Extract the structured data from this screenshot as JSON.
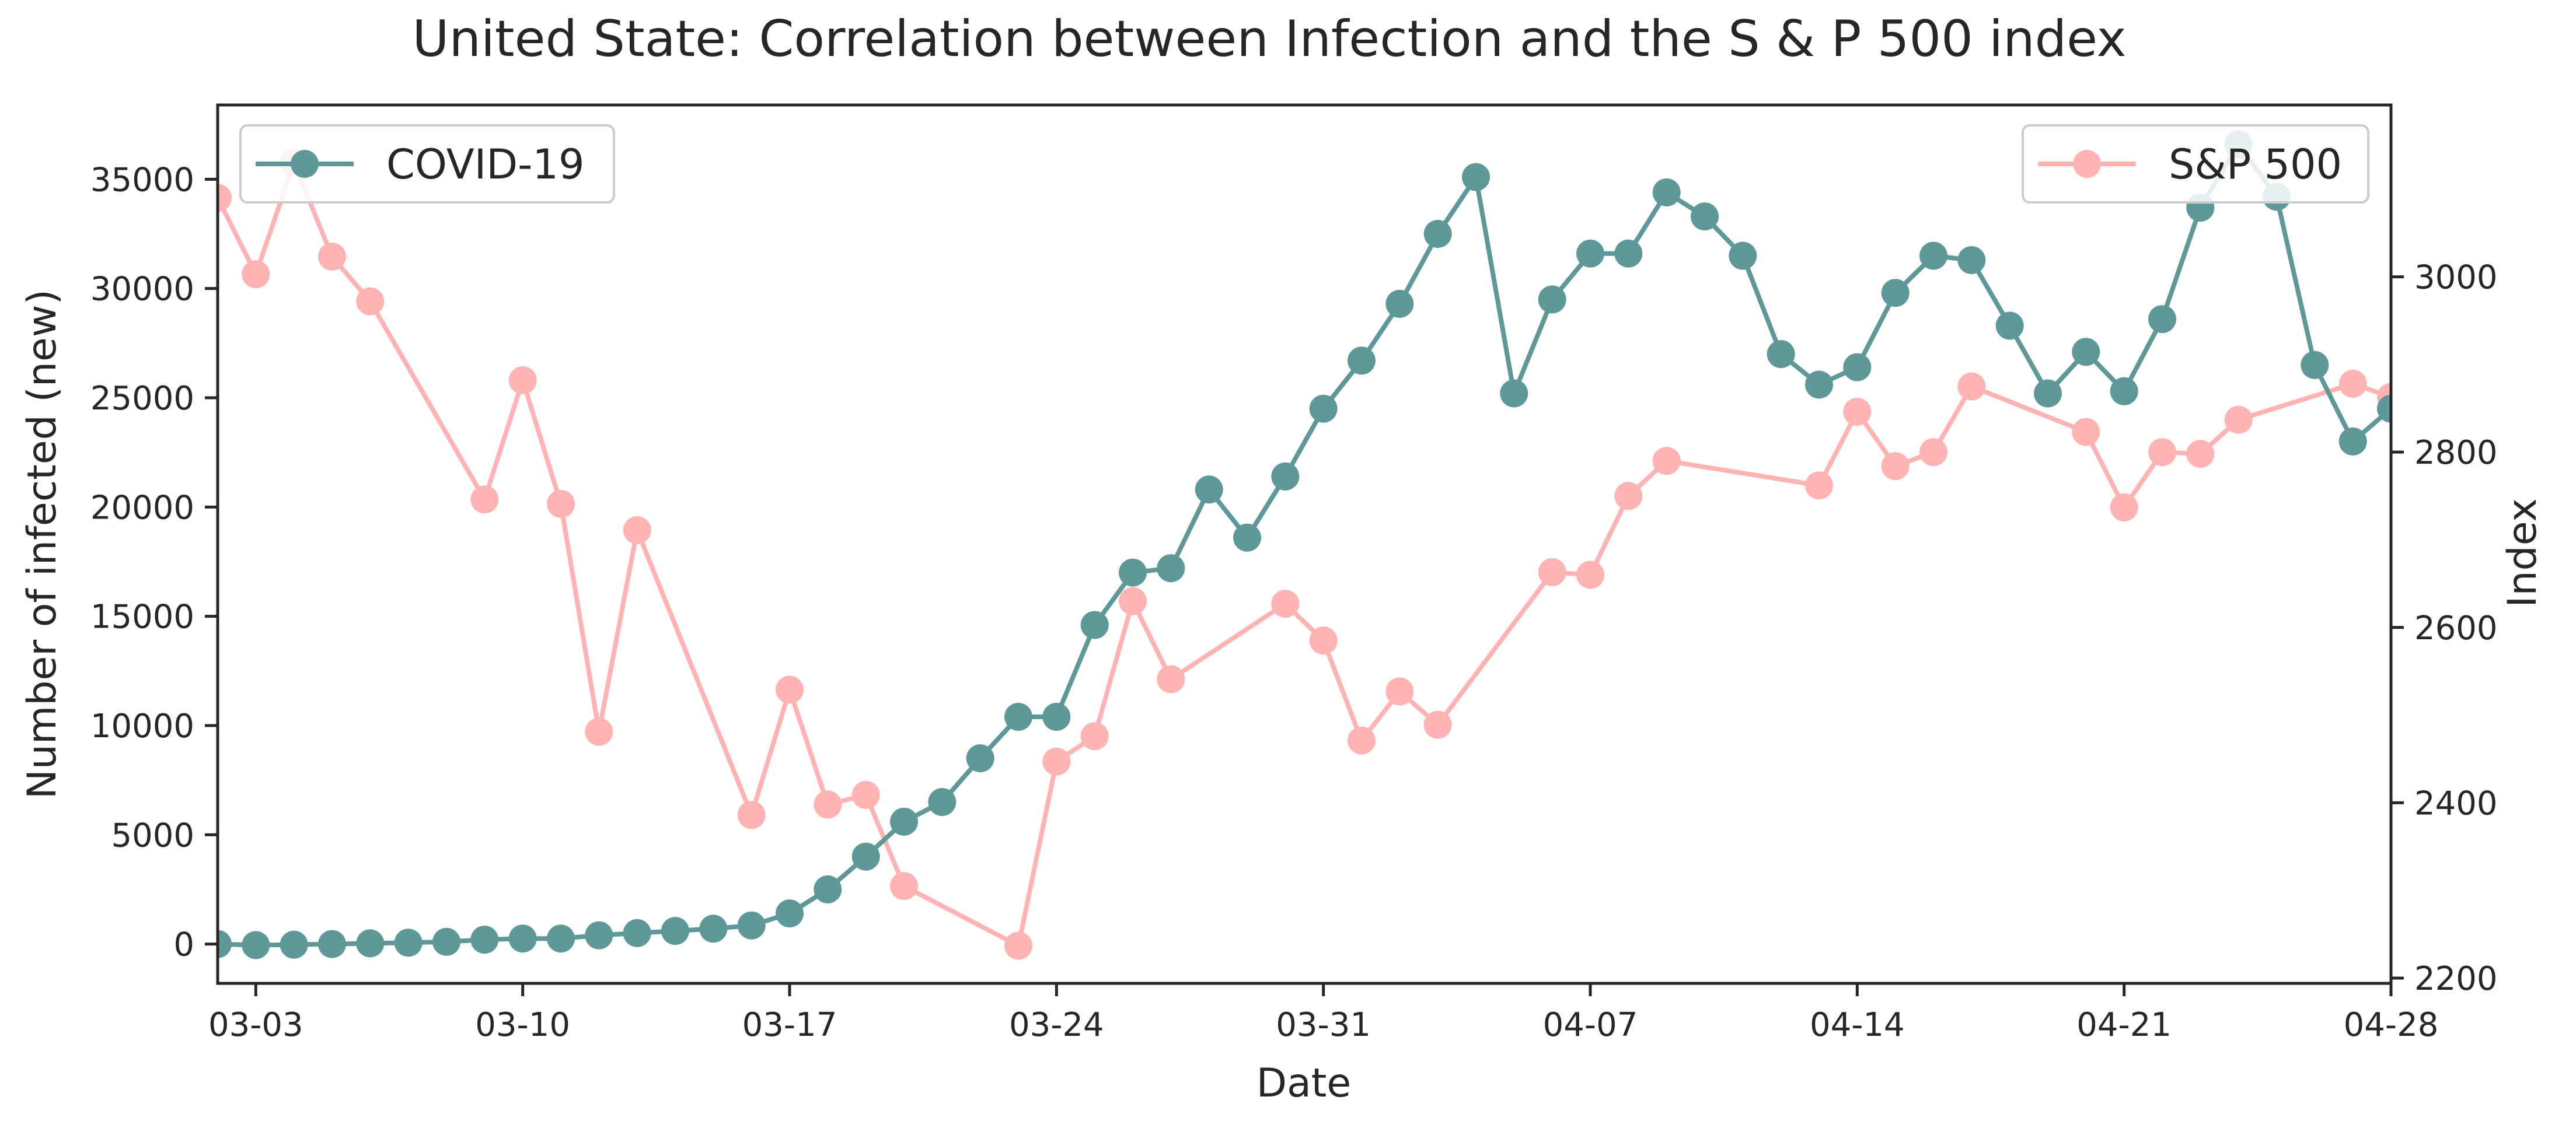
{
  "chart_data": {
    "type": "line",
    "title": "United State: Correlation between Infection and the S & P 500 index",
    "xlabel": "Date",
    "ylabel": "Number of infected (new)",
    "y2label": "Index",
    "xticks": [
      "03-03",
      "03-10",
      "03-17",
      "03-24",
      "03-31",
      "04-07",
      "04-14",
      "04-21",
      "04-28"
    ],
    "yticks": [
      0,
      5000,
      10000,
      15000,
      20000,
      25000,
      30000,
      35000
    ],
    "y2ticks": [
      2200,
      2400,
      2600,
      2800,
      3000
    ],
    "xlim": [
      "2020-03-02",
      "2020-04-28"
    ],
    "ylim": [
      -1800,
      38400
    ],
    "y2lim": [
      2194,
      3196
    ],
    "grid": false,
    "series": [
      {
        "name": "COVID-19",
        "axis": "left",
        "color": "#5f9898",
        "legend_position": "top-left",
        "points": [
          [
            "2020-03-02",
            0
          ],
          [
            "2020-03-03",
            -50
          ],
          [
            "2020-03-04",
            -30
          ],
          [
            "2020-03-05",
            0
          ],
          [
            "2020-03-06",
            30
          ],
          [
            "2020-03-07",
            60
          ],
          [
            "2020-03-08",
            100
          ],
          [
            "2020-03-09",
            200
          ],
          [
            "2020-03-10",
            250
          ],
          [
            "2020-03-11",
            250
          ],
          [
            "2020-03-12",
            400
          ],
          [
            "2020-03-13",
            500
          ],
          [
            "2020-03-14",
            600
          ],
          [
            "2020-03-15",
            700
          ],
          [
            "2020-03-16",
            850
          ],
          [
            "2020-03-17",
            1400
          ],
          [
            "2020-03-18",
            2500
          ],
          [
            "2020-03-19",
            4000
          ],
          [
            "2020-03-20",
            5600
          ],
          [
            "2020-03-21",
            6500
          ],
          [
            "2020-03-22",
            8500
          ],
          [
            "2020-03-23",
            10400
          ],
          [
            "2020-03-24",
            10400
          ],
          [
            "2020-03-25",
            14600
          ],
          [
            "2020-03-26",
            17000
          ],
          [
            "2020-03-27",
            17200
          ],
          [
            "2020-03-28",
            20800
          ],
          [
            "2020-03-29",
            18600
          ],
          [
            "2020-03-30",
            21400
          ],
          [
            "2020-03-31",
            24500
          ],
          [
            "2020-04-01",
            26700
          ],
          [
            "2020-04-02",
            29300
          ],
          [
            "2020-04-03",
            32500
          ],
          [
            "2020-04-04",
            35100
          ],
          [
            "2020-04-05",
            25200
          ],
          [
            "2020-04-06",
            29500
          ],
          [
            "2020-04-07",
            31600
          ],
          [
            "2020-04-08",
            31600
          ],
          [
            "2020-04-09",
            34400
          ],
          [
            "2020-04-10",
            33300
          ],
          [
            "2020-04-11",
            31500
          ],
          [
            "2020-04-12",
            27000
          ],
          [
            "2020-04-13",
            25600
          ],
          [
            "2020-04-14",
            26400
          ],
          [
            "2020-04-15",
            29800
          ],
          [
            "2020-04-16",
            31500
          ],
          [
            "2020-04-17",
            31300
          ],
          [
            "2020-04-18",
            28300
          ],
          [
            "2020-04-19",
            25200
          ],
          [
            "2020-04-20",
            27100
          ],
          [
            "2020-04-21",
            25300
          ],
          [
            "2020-04-22",
            28600
          ],
          [
            "2020-04-23",
            33700
          ],
          [
            "2020-04-24",
            36600
          ],
          [
            "2020-04-25",
            34200
          ],
          [
            "2020-04-26",
            26500
          ],
          [
            "2020-04-27",
            23000
          ],
          [
            "2020-04-28",
            24500
          ]
        ]
      },
      {
        "name": "S&P 500",
        "axis": "right",
        "color": "#ffb3b3",
        "legend_position": "top-right",
        "points": [
          [
            "2020-03-02",
            3090
          ],
          [
            "2020-03-03",
            3003
          ],
          [
            "2020-03-04",
            3130
          ],
          [
            "2020-03-05",
            3023
          ],
          [
            "2020-03-06",
            2972
          ],
          [
            "2020-03-09",
            2746
          ],
          [
            "2020-03-10",
            2882
          ],
          [
            "2020-03-11",
            2741
          ],
          [
            "2020-03-12",
            2481
          ],
          [
            "2020-03-13",
            2711
          ],
          [
            "2020-03-16",
            2386
          ],
          [
            "2020-03-17",
            2529
          ],
          [
            "2020-03-18",
            2398
          ],
          [
            "2020-03-19",
            2409
          ],
          [
            "2020-03-20",
            2305
          ],
          [
            "2020-03-23",
            2237
          ],
          [
            "2020-03-24",
            2447
          ],
          [
            "2020-03-25",
            2476
          ],
          [
            "2020-03-26",
            2630
          ],
          [
            "2020-03-27",
            2541
          ],
          [
            "2020-03-30",
            2627
          ],
          [
            "2020-03-31",
            2585
          ],
          [
            "2020-04-01",
            2471
          ],
          [
            "2020-04-02",
            2527
          ],
          [
            "2020-04-03",
            2489
          ],
          [
            "2020-04-06",
            2663
          ],
          [
            "2020-04-07",
            2660
          ],
          [
            "2020-04-08",
            2750
          ],
          [
            "2020-04-09",
            2790
          ],
          [
            "2020-04-13",
            2762
          ],
          [
            "2020-04-14",
            2846
          ],
          [
            "2020-04-15",
            2784
          ],
          [
            "2020-04-16",
            2800
          ],
          [
            "2020-04-17",
            2875
          ],
          [
            "2020-04-20",
            2823
          ],
          [
            "2020-04-21",
            2737
          ],
          [
            "2020-04-22",
            2800
          ],
          [
            "2020-04-23",
            2798
          ],
          [
            "2020-04-24",
            2837
          ],
          [
            "2020-04-27",
            2878
          ],
          [
            "2020-04-28",
            2863
          ]
        ]
      }
    ]
  }
}
